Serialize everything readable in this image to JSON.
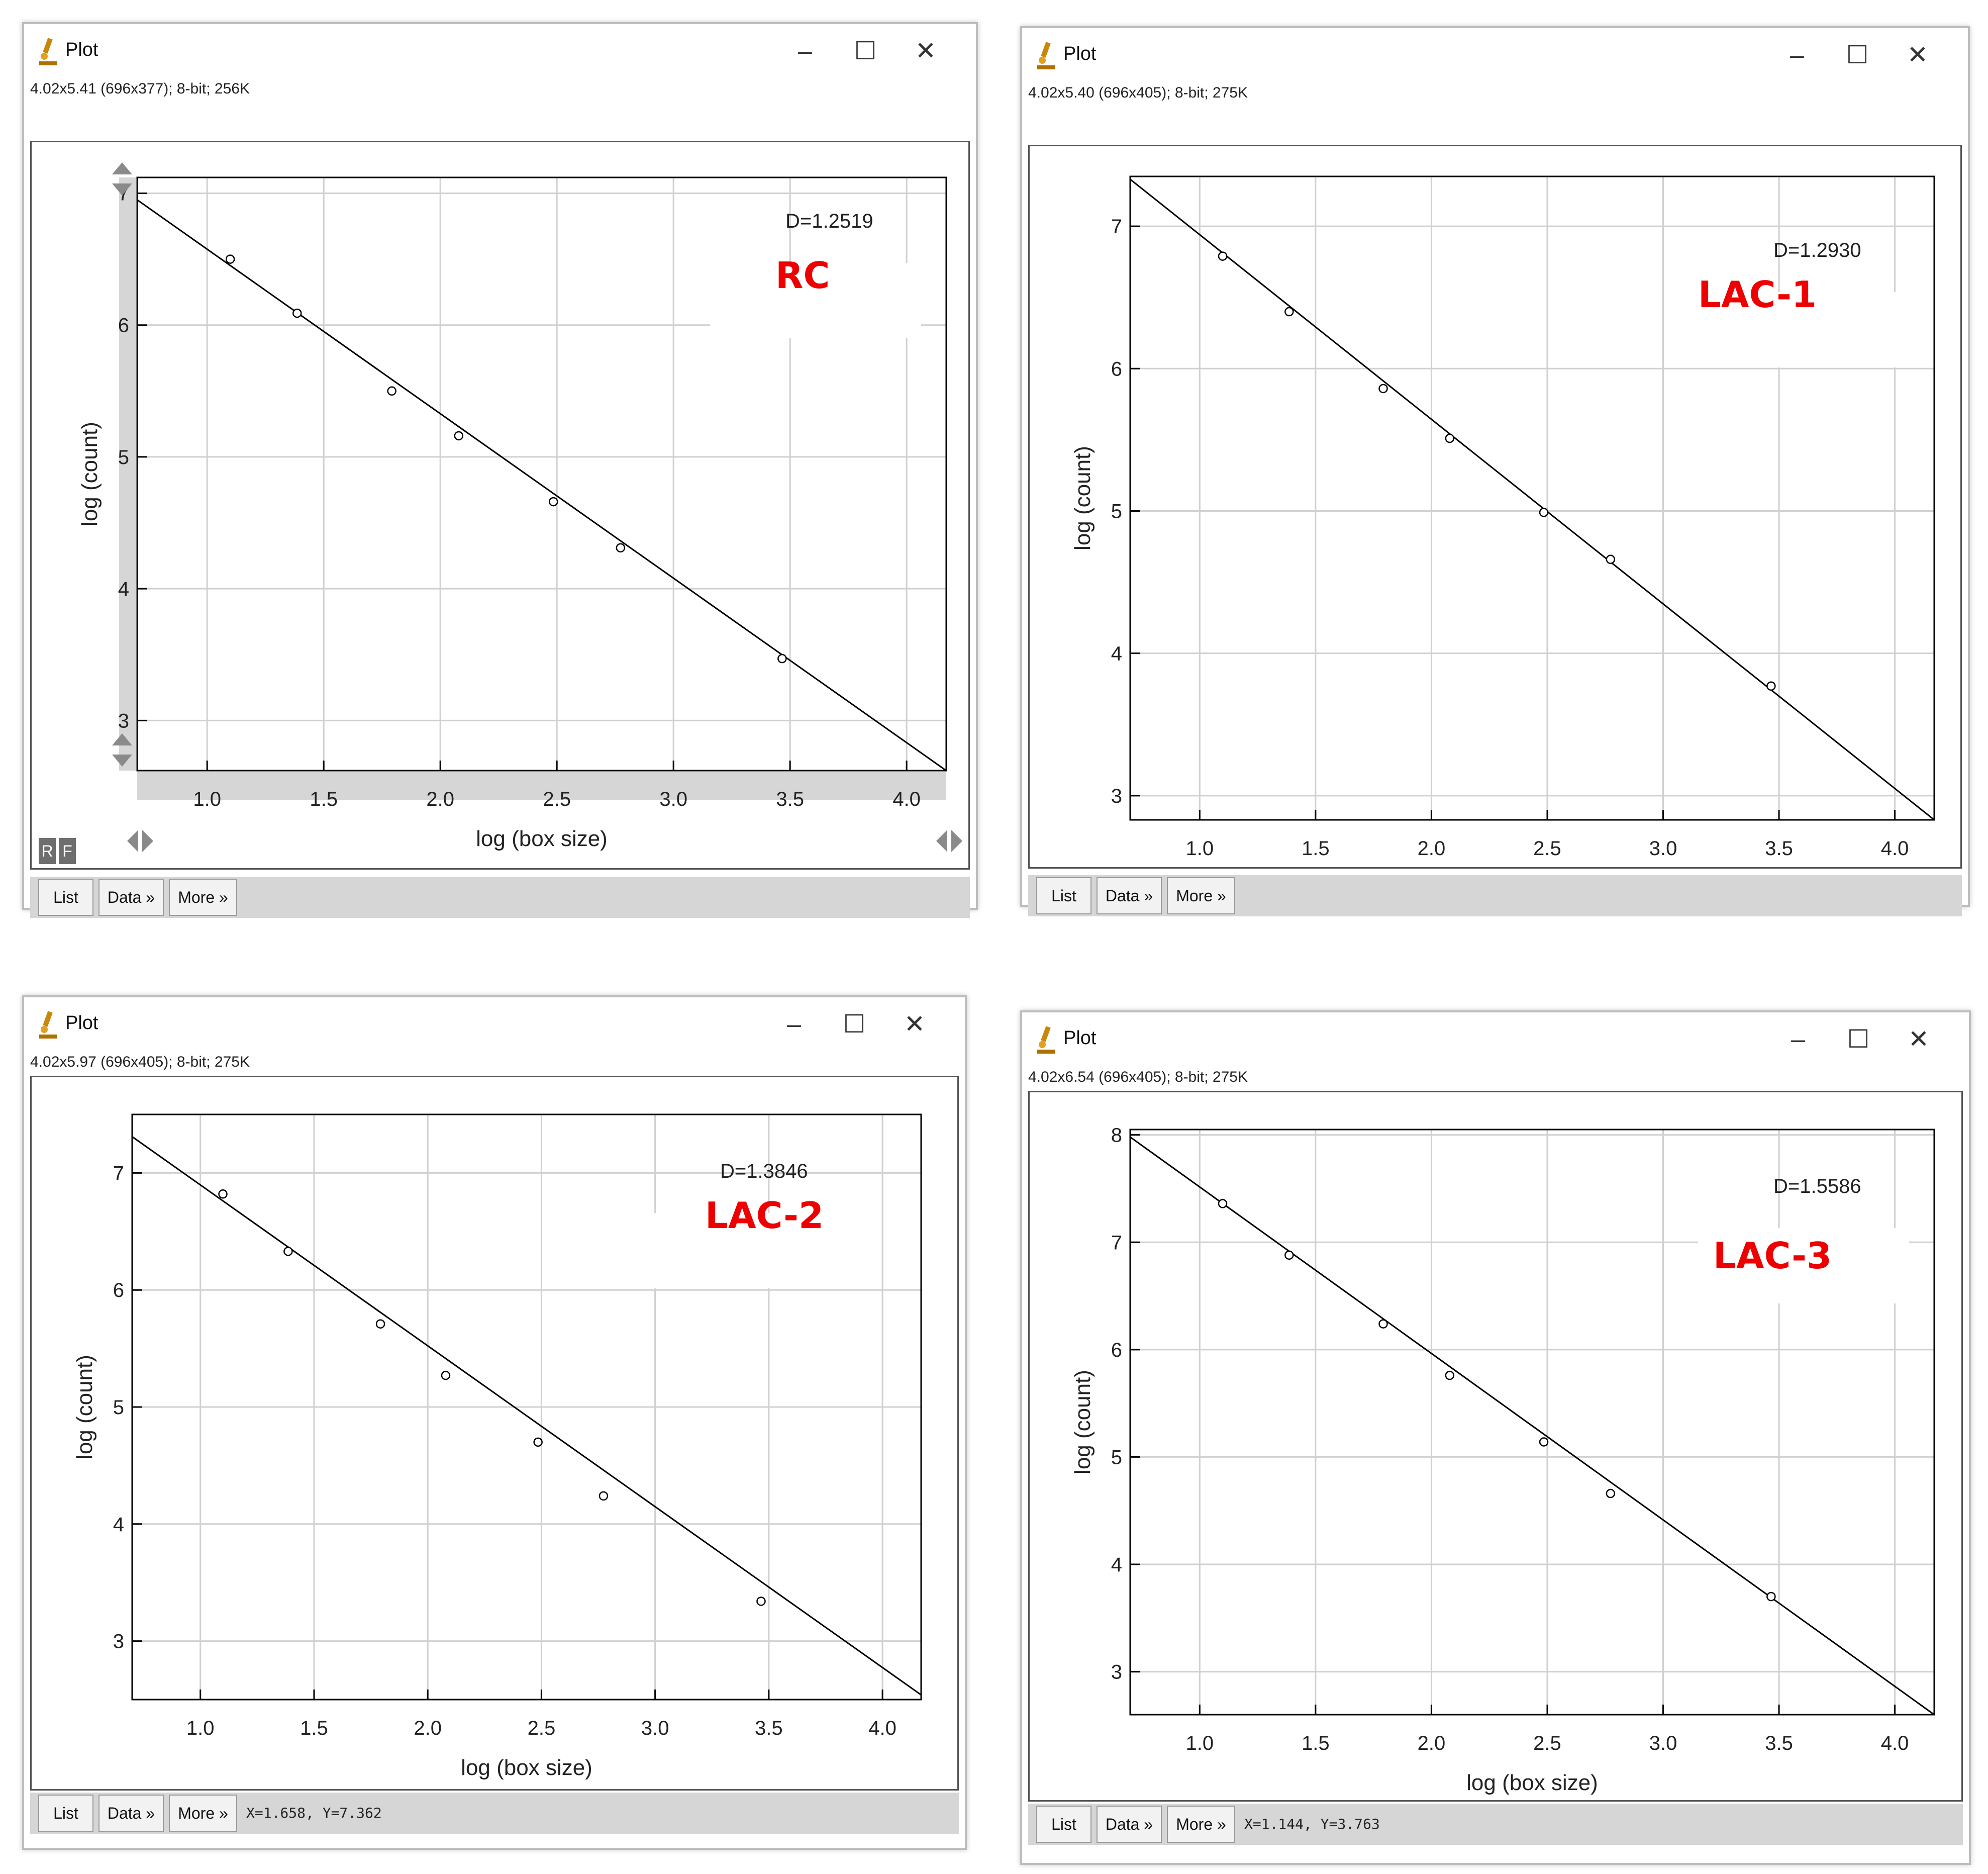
{
  "colors": {
    "label_red": "#ee0000",
    "grid": "#d0d0d0",
    "axis": "#000000",
    "bar": "#d6d6d6"
  },
  "icons": {
    "app": "microscope-icon",
    "minimize": "minimize-icon",
    "maximize": "maximize-icon",
    "close": "close-icon"
  },
  "window_controls": {
    "minimize": "–",
    "maximize": "☐",
    "close": "✕"
  },
  "buttons": {
    "list": "List",
    "data": "Data »",
    "more": "More »"
  },
  "windows": [
    {
      "title": "Plot",
      "info": "4.02x5.41   (696x377); 8-bit; 256K",
      "label": "RC",
      "status": "",
      "has_scroll_controls": true,
      "rf": [
        "R",
        "F"
      ],
      "chart_data": {
        "type": "scatter",
        "xlabel": "log (box size)",
        "ylabel": "log (count)",
        "annotation": "D=1.2519",
        "xlim": [
          0.7,
          4.17
        ],
        "ylim": [
          2.62,
          7.12
        ],
        "xticks": [
          "1.0",
          "1.5",
          "2.0",
          "2.5",
          "3.0",
          "3.5",
          "4.0"
        ],
        "yticks": [
          "3",
          "4",
          "5",
          "6",
          "7"
        ],
        "x": [
          1.099,
          1.386,
          1.792,
          2.079,
          2.485,
          2.773,
          3.466
        ],
        "y": [
          6.5,
          6.09,
          5.5,
          5.16,
          4.66,
          4.31,
          3.47
        ],
        "fit": {
          "x": [
            0.7,
            4.17
          ],
          "y": [
            6.95,
            2.62
          ]
        }
      }
    },
    {
      "title": "Plot",
      "info": "4.02x5.40   (696x405); 8-bit; 275K",
      "label": "LAC-1",
      "status": "",
      "has_scroll_controls": false,
      "rf": [],
      "chart_data": {
        "type": "scatter",
        "xlabel": "log (box size)",
        "ylabel": "log (count)",
        "annotation": "D=1.2930",
        "xlim": [
          0.7,
          4.17
        ],
        "ylim": [
          2.83,
          7.35
        ],
        "xticks": [
          "1.0",
          "1.5",
          "2.0",
          "2.5",
          "3.0",
          "3.5",
          "4.0"
        ],
        "yticks": [
          "3",
          "4",
          "5",
          "6",
          "7"
        ],
        "x": [
          1.099,
          1.386,
          1.792,
          2.079,
          2.485,
          2.773,
          3.466
        ],
        "y": [
          6.79,
          6.4,
          5.86,
          5.51,
          4.99,
          4.66,
          3.77
        ],
        "fit": {
          "x": [
            0.7,
            4.17
          ],
          "y": [
            7.33,
            2.83
          ]
        }
      }
    },
    {
      "title": "Plot",
      "info": "4.02x5.97   (696x405); 8-bit; 275K",
      "label": "LAC-2",
      "status": "X=1.658, Y=7.362",
      "has_scroll_controls": false,
      "rf": [],
      "chart_data": {
        "type": "scatter",
        "xlabel": "log (box size)",
        "ylabel": "log (count)",
        "annotation": "D=1.3846",
        "xlim": [
          0.7,
          4.17
        ],
        "ylim": [
          2.5,
          7.5
        ],
        "xticks": [
          "1.0",
          "1.5",
          "2.0",
          "2.5",
          "3.0",
          "3.5",
          "4.0"
        ],
        "yticks": [
          "3",
          "4",
          "5",
          "6",
          "7"
        ],
        "x": [
          1.099,
          1.386,
          1.792,
          2.079,
          2.485,
          2.773,
          3.466
        ],
        "y": [
          6.82,
          6.33,
          5.71,
          5.27,
          4.7,
          4.24,
          3.34
        ],
        "fit": {
          "x": [
            0.7,
            4.17
          ],
          "y": [
            7.31,
            2.54
          ]
        }
      }
    },
    {
      "title": "Plot",
      "info": "4.02x6.54   (696x405); 8-bit; 275K",
      "label": "LAC-3",
      "status": "X=1.144, Y=3.763",
      "has_scroll_controls": false,
      "rf": [],
      "chart_data": {
        "type": "scatter",
        "xlabel": "log (box size)",
        "ylabel": "log (count)",
        "annotation": "D=1.5586",
        "xlim": [
          0.7,
          4.17
        ],
        "ylim": [
          2.6,
          8.05
        ],
        "xticks": [
          "1.0",
          "1.5",
          "2.0",
          "2.5",
          "3.0",
          "3.5",
          "4.0"
        ],
        "yticks": [
          "3",
          "4",
          "5",
          "6",
          "7",
          "8"
        ],
        "x": [
          1.099,
          1.386,
          1.792,
          2.079,
          2.485,
          2.773,
          3.466
        ],
        "y": [
          7.36,
          6.88,
          6.24,
          5.76,
          5.14,
          4.66,
          3.7
        ],
        "fit": {
          "x": [
            0.7,
            4.17
          ],
          "y": [
            7.98,
            2.6
          ]
        }
      }
    }
  ]
}
